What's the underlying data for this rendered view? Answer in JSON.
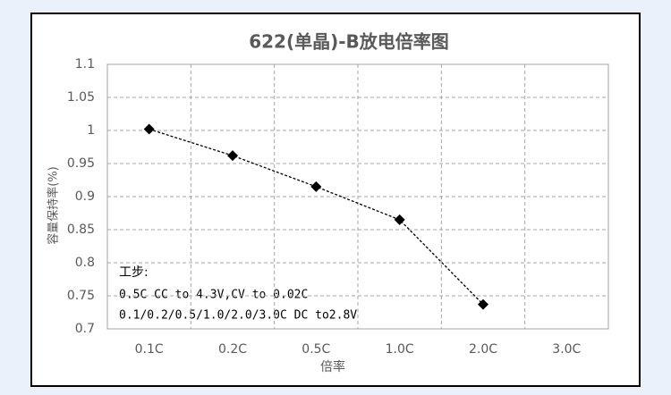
{
  "chart_data": {
    "type": "line",
    "title": "622(单晶)-B放电倍率图",
    "x_label": "倍率",
    "y_label": "容量保持率(%)",
    "categories": [
      "0.1C",
      "0.2C",
      "0.5C",
      "1.0C",
      "2.0C",
      "3.0C"
    ],
    "series": [
      {
        "name": "622(单晶)-B",
        "color": "#000000",
        "values": [
          1.002,
          0.962,
          0.915,
          0.865,
          0.737,
          null
        ]
      }
    ],
    "ylim": [
      0.7,
      1.1
    ],
    "yticks": [
      0.7,
      0.75,
      0.8,
      0.85,
      0.9,
      0.95,
      1,
      1.05,
      1.1
    ],
    "grid": true,
    "annotations": [
      "工步:",
      "0.5C CC to 4.3V,CV to 0.02C",
      "0.1/0.2/0.5/1.0/2.0/3.0C DC to2.8V"
    ]
  }
}
